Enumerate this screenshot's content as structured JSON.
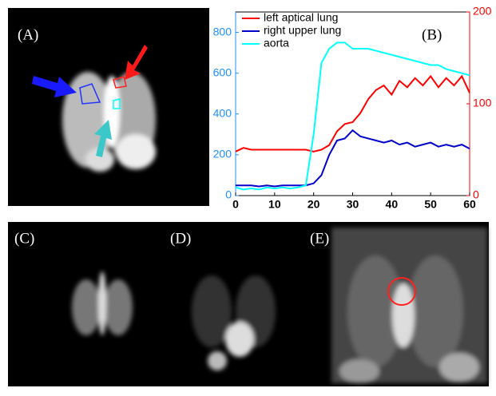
{
  "panels": [
    "(A)",
    "(B)",
    "(C)",
    "(D)",
    "(E)"
  ],
  "chart_data": {
    "type": "line",
    "x": [
      0,
      2,
      4,
      6,
      8,
      10,
      12,
      14,
      16,
      18,
      20,
      22,
      24,
      26,
      28,
      30,
      32,
      34,
      36,
      38,
      40,
      42,
      44,
      46,
      48,
      50,
      52,
      54,
      56,
      58,
      60
    ],
    "xlim": [
      0,
      60
    ],
    "xticks": [
      0,
      10,
      20,
      30,
      40,
      50,
      60
    ],
    "ylim": [
      0,
      900
    ],
    "yticks": [
      0,
      200,
      400,
      600,
      800
    ],
    "ycolor": "#1e90ff",
    "y2lim": [
      0,
      200
    ],
    "y2ticks": [
      0,
      100,
      200
    ],
    "y2color": "#ff0000",
    "legend": "upper left",
    "series": [
      {
        "name": "left aptical lung",
        "color": "#ff0000",
        "axis": "y2",
        "values": [
          48,
          52,
          50,
          50,
          50,
          50,
          50,
          50,
          50,
          50,
          48,
          50,
          55,
          70,
          78,
          80,
          90,
          105,
          115,
          120,
          110,
          125,
          118,
          128,
          120,
          130,
          118,
          128,
          120,
          130,
          112
        ]
      },
      {
        "name": "right upper lung",
        "color": "#0000cc",
        "values": [
          50,
          50,
          50,
          45,
          50,
          45,
          50,
          50,
          50,
          50,
          60,
          100,
          200,
          270,
          280,
          320,
          290,
          280,
          270,
          260,
          270,
          250,
          260,
          240,
          250,
          260,
          240,
          250,
          240,
          250,
          230
        ]
      },
      {
        "name": "aorta",
        "color": "#00ffff",
        "values": [
          40,
          30,
          35,
          30,
          40,
          35,
          40,
          35,
          40,
          50,
          300,
          650,
          720,
          750,
          750,
          720,
          720,
          720,
          710,
          700,
          690,
          680,
          670,
          660,
          650,
          640,
          640,
          620,
          610,
          600,
          590
        ]
      }
    ]
  }
}
